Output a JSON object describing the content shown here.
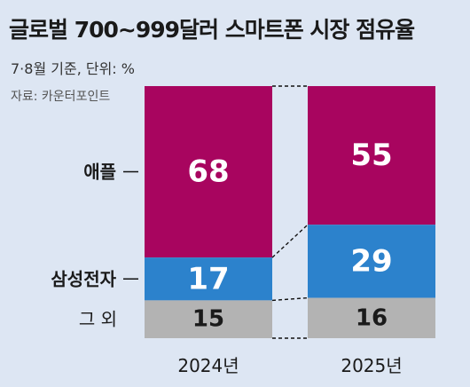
{
  "header": {
    "title": "글로벌 700~999달러 스마트폰 시장 점유율",
    "subtitle": "7·8월 기준, 단위: %",
    "source": "자료: 카운터포인트"
  },
  "chart_data": {
    "type": "bar",
    "stacked": true,
    "categories": [
      "2024년",
      "2025년"
    ],
    "series": [
      {
        "name": "애플",
        "values": [
          68,
          55
        ],
        "color": "#a8055f",
        "label_color": "#ffffff"
      },
      {
        "name": "삼성전자",
        "values": [
          17,
          29
        ],
        "color": "#2c82cc",
        "label_color": "#ffffff"
      },
      {
        "name": "그 외",
        "values": [
          15,
          16
        ],
        "color": "#b3b3b3",
        "label_color": "#1a1a1a"
      }
    ],
    "ylim": [
      0,
      100
    ]
  }
}
